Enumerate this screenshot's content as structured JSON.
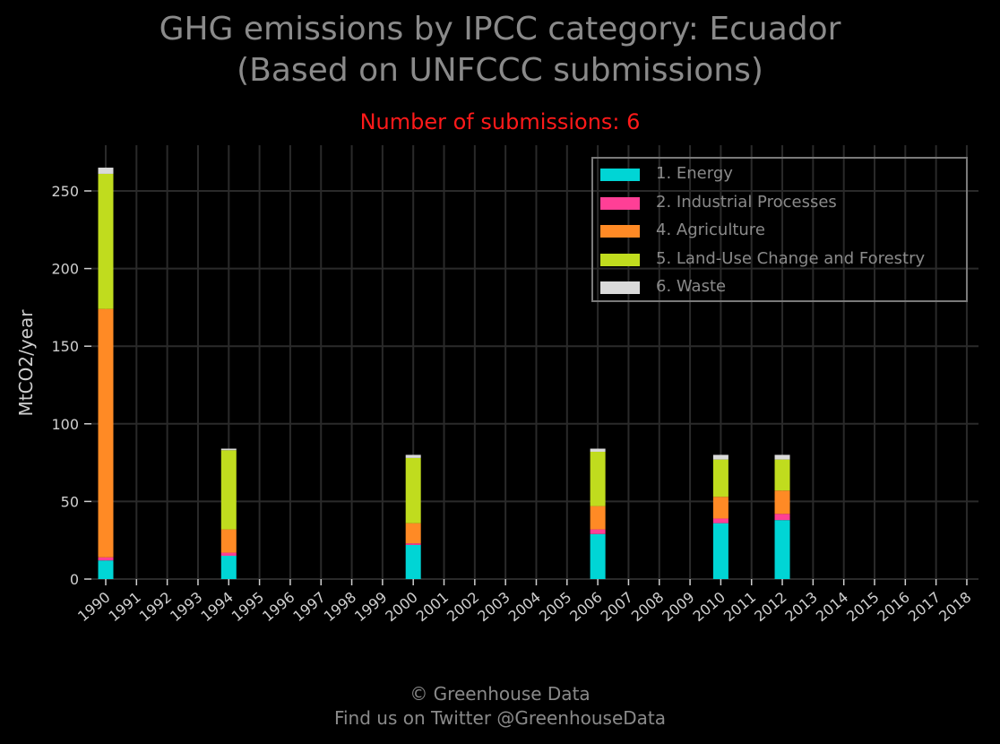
{
  "title_line1": "GHG emissions by IPCC category: Ecuador",
  "title_line2": "(Based on UNFCCC submissions)",
  "subtitle": "Number of submissions: 6",
  "footer_line1": "© Greenhouse Data",
  "footer_line2": "Find us on Twitter @GreenhouseData",
  "chart_data": {
    "type": "bar",
    "stacked": true,
    "ylabel": "MtCO2/year",
    "xlabel": "",
    "ylim": [
      0,
      275
    ],
    "yticks": [
      0,
      50,
      100,
      150,
      200,
      250
    ],
    "grid": true,
    "legend_position": "top-right",
    "categories": [
      "1990",
      "1991",
      "1992",
      "1993",
      "1994",
      "1995",
      "1996",
      "1997",
      "1998",
      "1999",
      "2000",
      "2001",
      "2002",
      "2003",
      "2004",
      "2005",
      "2006",
      "2007",
      "2008",
      "2009",
      "2010",
      "2011",
      "2012",
      "2013",
      "2014",
      "2015",
      "2016",
      "2017",
      "2018"
    ],
    "series": [
      {
        "name": "1. Energy",
        "color": "#00d5d5",
        "values": [
          12,
          0,
          0,
          0,
          15,
          0,
          0,
          0,
          0,
          0,
          22,
          0,
          0,
          0,
          0,
          0,
          29,
          0,
          0,
          0,
          36,
          0,
          38,
          0,
          0,
          0,
          0,
          0,
          0
        ]
      },
      {
        "name": "2. Industrial Processes",
        "color": "#ff3f96",
        "values": [
          2,
          0,
          0,
          0,
          2,
          0,
          0,
          0,
          0,
          0,
          1,
          0,
          0,
          0,
          0,
          0,
          3,
          0,
          0,
          0,
          3,
          0,
          4,
          0,
          0,
          0,
          0,
          0,
          0
        ]
      },
      {
        "name": "4. Agriculture",
        "color": "#ff8a25",
        "values": [
          160,
          0,
          0,
          0,
          15,
          0,
          0,
          0,
          0,
          0,
          13,
          0,
          0,
          0,
          0,
          0,
          15,
          0,
          0,
          0,
          14,
          0,
          15,
          0,
          0,
          0,
          0,
          0,
          0
        ]
      },
      {
        "name": "5. Land-Use Change and Forestry",
        "color": "#c0dc1e",
        "values": [
          87,
          0,
          0,
          0,
          51,
          0,
          0,
          0,
          0,
          0,
          42,
          0,
          0,
          0,
          0,
          0,
          35,
          0,
          0,
          0,
          24,
          0,
          20,
          0,
          0,
          0,
          0,
          0,
          0
        ]
      },
      {
        "name": "6. Waste",
        "color": "#dadada",
        "values": [
          4,
          0,
          0,
          0,
          1,
          0,
          0,
          0,
          0,
          0,
          2,
          0,
          0,
          0,
          0,
          0,
          2,
          0,
          0,
          0,
          3,
          0,
          3,
          0,
          0,
          0,
          0,
          0,
          0
        ]
      }
    ]
  }
}
